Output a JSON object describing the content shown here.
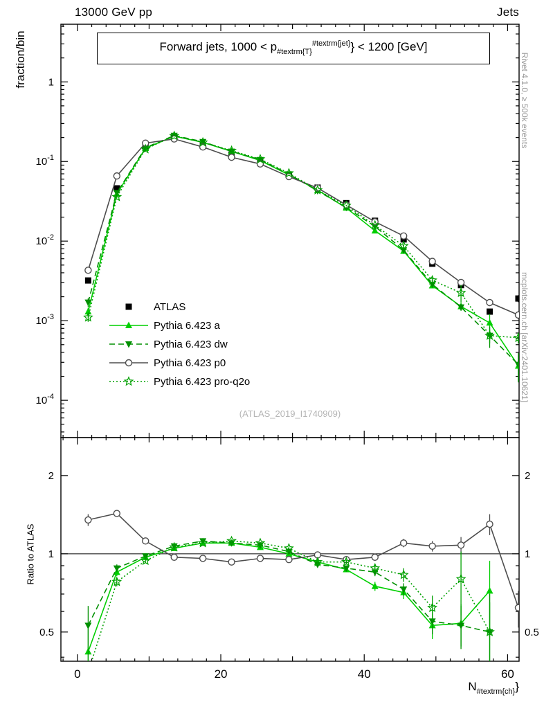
{
  "header": {
    "left": "13000 GeV pp",
    "right": "Jets"
  },
  "title": {
    "prefix": "Forward jets, 1000 < p",
    "sub": "#textrm{T}",
    "sup": "#textrm{jet}",
    "suffix": "} < 1200 [GeV]"
  },
  "watermark": "(ATLAS_2019_I1740909)",
  "side_notes": {
    "top_right": "Rivet 4.1.0, ≥ 500k events",
    "bottom_right": "mcplots.cern.ch [arXiv:2401.10621]"
  },
  "axes": {
    "main_ylabel": "fraction/bin",
    "ratio_ylabel": "Ratio to ATLAS",
    "xlabel": {
      "base": "N",
      "sub": "#textrm{ch}",
      "suffix": "}"
    },
    "x_ticks": [
      0,
      20,
      40,
      60
    ],
    "main_y_ticks": [
      {
        "v": 1,
        "base": "1",
        "exp": ""
      },
      {
        "v": 0.1,
        "base": "10",
        "exp": "-1"
      },
      {
        "v": 0.01,
        "base": "10",
        "exp": "-2"
      },
      {
        "v": 0.001,
        "base": "10",
        "exp": "-3"
      },
      {
        "v": 0.0001,
        "base": "10",
        "exp": "-4"
      }
    ],
    "ratio_y_ticks": [
      {
        "v": 2,
        "t": "2"
      },
      {
        "v": 1,
        "t": "1"
      },
      {
        "v": 0.5,
        "t": "0.5"
      }
    ]
  },
  "chart_data": {
    "type": "line",
    "xlabel": "N_ch",
    "main_ylabel": "fraction/bin",
    "ratio_ylabel": "Ratio to ATLAS",
    "x": [
      1.5,
      5.5,
      9.5,
      13.5,
      17.5,
      21.5,
      25.5,
      29.5,
      33.5,
      37.5,
      41.5,
      45.5,
      49.5,
      53.5,
      57.5,
      61.5
    ],
    "xlim": [
      -2.3,
      61.6
    ],
    "main": {
      "yscale": "log",
      "ylim": [
        3.4e-05,
        5.3
      ]
    },
    "ratio": {
      "yscale": "log",
      "ylim": [
        0.386,
        2.8
      ],
      "ref_line": 1
    },
    "series": [
      {
        "name": "atlas",
        "label": "ATLAS",
        "marker": "square-filled",
        "color": "#000000",
        "line": "none",
        "values": [
          0.0032,
          0.046,
          0.152,
          0.198,
          0.158,
          0.122,
          0.097,
          0.068,
          0.047,
          0.03,
          0.018,
          0.0105,
          0.0052,
          0.0028,
          0.0013,
          0.0019
        ],
        "yerr_rel": [
          0.05,
          0.02,
          0.01,
          0.01,
          0.01,
          0.01,
          0.01,
          0.01,
          0.012,
          0.015,
          0.02,
          0.025,
          0.035,
          0.05,
          0.08,
          0.1
        ],
        "ratio": null,
        "ratio_err": null
      },
      {
        "name": "pythia-a",
        "label": "Pythia 6.423 a",
        "marker": "triangle-up",
        "color": "#00cf00",
        "line": "solid",
        "values": [
          0.0013,
          0.039,
          0.147,
          0.208,
          0.174,
          0.134,
          0.103,
          0.068,
          0.0437,
          0.0261,
          0.0135,
          0.0075,
          0.00276,
          0.00151,
          0.00094,
          0.00027
        ],
        "yerr_rel": [
          0.12,
          0.03,
          0.015,
          0.01,
          0.01,
          0.01,
          0.01,
          0.012,
          0.015,
          0.02,
          0.03,
          0.04,
          0.07,
          0.1,
          0.28,
          0.35
        ],
        "ratio": [
          0.42,
          0.85,
          0.97,
          1.05,
          1.1,
          1.1,
          1.06,
          1.0,
          0.93,
          0.87,
          0.75,
          0.71,
          0.53,
          0.54,
          0.72,
          null
        ],
        "ratio_err": [
          0.1,
          0.03,
          0.02,
          0.01,
          0.01,
          0.01,
          0.01,
          0.01,
          0.02,
          0.02,
          0.03,
          0.04,
          0.06,
          0.1,
          0.22,
          0.1
        ]
      },
      {
        "name": "pythia-dw",
        "label": "Pythia 6.423 dw",
        "marker": "triangle-down",
        "color": "#008f00",
        "line": "dashed",
        "values": [
          0.0017,
          0.0405,
          0.149,
          0.212,
          0.177,
          0.134,
          0.105,
          0.0694,
          0.0428,
          0.0264,
          0.0153,
          0.0077,
          0.00286,
          0.00148,
          0.00065,
          0.00028
        ],
        "yerr_rel": [
          0.12,
          0.03,
          0.015,
          0.01,
          0.01,
          0.01,
          0.01,
          0.012,
          0.015,
          0.02,
          0.03,
          0.04,
          0.07,
          0.1,
          0.3,
          0.4
        ],
        "ratio": [
          0.53,
          0.88,
          0.98,
          1.07,
          1.12,
          1.1,
          1.08,
          1.02,
          0.91,
          0.88,
          0.85,
          0.73,
          0.55,
          0.53,
          0.5,
          null
        ],
        "ratio_err": [
          0.1,
          0.03,
          0.02,
          0.01,
          0.01,
          0.01,
          0.01,
          0.01,
          0.02,
          0.02,
          0.03,
          0.04,
          0.06,
          0.1,
          0.2,
          0.15
        ]
      },
      {
        "name": "pythia-p0",
        "label": "Pythia 6.423 p0",
        "marker": "circle-open",
        "color": "#4d4d4d",
        "line": "solid",
        "values": [
          0.0043,
          0.0658,
          0.17,
          0.192,
          0.152,
          0.113,
          0.0931,
          0.0646,
          0.0465,
          0.0285,
          0.0175,
          0.0116,
          0.00556,
          0.00302,
          0.00169,
          0.00118
        ],
        "yerr_rel": [
          0.05,
          0.02,
          0.01,
          0.01,
          0.01,
          0.01,
          0.01,
          0.01,
          0.012,
          0.015,
          0.02,
          0.03,
          0.04,
          0.06,
          0.1,
          0.12
        ],
        "ratio": [
          1.35,
          1.43,
          1.12,
          0.97,
          0.96,
          0.93,
          0.96,
          0.95,
          0.99,
          0.95,
          0.97,
          1.1,
          1.07,
          1.08,
          1.3,
          0.62
        ],
        "ratio_err": [
          0.07,
          0.04,
          0.02,
          0.01,
          0.01,
          0.01,
          0.01,
          0.01,
          0.02,
          0.02,
          0.03,
          0.04,
          0.05,
          0.08,
          0.12,
          0.1
        ]
      },
      {
        "name": "pythia-pro-q2o",
        "label": "Pythia 6.423 pro-q2o",
        "marker": "star-open",
        "color": "#00a000",
        "line": "dotted",
        "values": [
          0.0011,
          0.0359,
          0.143,
          0.21,
          0.174,
          0.137,
          0.107,
          0.0714,
          0.0437,
          0.0279,
          0.0158,
          0.0087,
          0.00322,
          0.00224,
          0.00065,
          0.00061
        ],
        "yerr_rel": [
          0.12,
          0.03,
          0.015,
          0.01,
          0.01,
          0.01,
          0.01,
          0.012,
          0.015,
          0.02,
          0.03,
          0.05,
          0.08,
          0.25,
          0.2,
          0.15
        ],
        "ratio": [
          0.35,
          0.78,
          0.94,
          1.06,
          1.1,
          1.12,
          1.1,
          1.05,
          0.93,
          0.93,
          0.88,
          0.83,
          0.62,
          0.8,
          0.5,
          null
        ],
        "ratio_err": [
          0.09,
          0.03,
          0.02,
          0.01,
          0.01,
          0.01,
          0.01,
          0.01,
          0.02,
          0.02,
          0.03,
          0.05,
          0.07,
          0.22,
          0.15,
          0.12
        ]
      }
    ],
    "legend_position": "center-left"
  }
}
